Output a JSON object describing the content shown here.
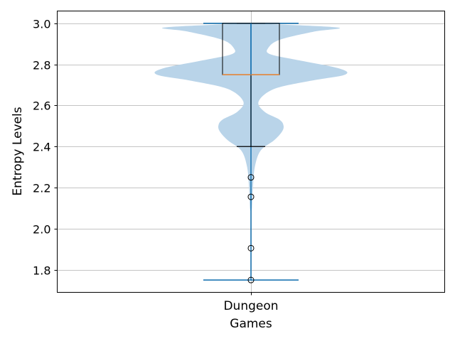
{
  "chart_data": {
    "type": "violin",
    "title": "",
    "xlabel": "Games",
    "ylabel": "Entropy Levels",
    "categories": [
      "Dungeon"
    ],
    "ylim": [
      1.69,
      3.06
    ],
    "yticks": [
      1.8,
      2.0,
      2.2,
      2.4,
      2.6,
      2.8,
      3.0
    ],
    "ytick_labels": [
      "1.8",
      "2.0",
      "2.2",
      "2.4",
      "2.6",
      "2.8",
      "3.0"
    ],
    "grid": true,
    "violin": {
      "min": 1.75,
      "max": 3.0,
      "density_profile": [
        [
          1.75,
          0.0
        ],
        [
          2.05,
          0.0
        ],
        [
          2.1,
          0.01
        ],
        [
          2.2,
          0.02
        ],
        [
          2.3,
          0.04
        ],
        [
          2.38,
          0.1
        ],
        [
          2.43,
          0.24
        ],
        [
          2.47,
          0.32
        ],
        [
          2.5,
          0.34
        ],
        [
          2.53,
          0.3
        ],
        [
          2.57,
          0.14
        ],
        [
          2.62,
          0.08
        ],
        [
          2.68,
          0.24
        ],
        [
          2.72,
          0.62
        ],
        [
          2.75,
          0.98
        ],
        [
          2.78,
          0.92
        ],
        [
          2.82,
          0.5
        ],
        [
          2.85,
          0.2
        ],
        [
          2.88,
          0.18
        ],
        [
          2.92,
          0.3
        ],
        [
          2.96,
          0.66
        ],
        [
          2.98,
          0.9
        ],
        [
          3.0,
          0.0
        ]
      ]
    },
    "box": {
      "q1": 2.75,
      "median": 2.75,
      "q3": 3.0,
      "whisker_low": 2.4,
      "whisker_high": 3.0,
      "outliers": [
        2.25,
        2.155,
        1.905,
        1.75
      ]
    },
    "colors": {
      "violin_fill": "#b9d4e9",
      "violin_line": "#1f77b4",
      "median": "#e08a45",
      "box_line": "#000000",
      "grid": "#b0b0b0"
    }
  }
}
